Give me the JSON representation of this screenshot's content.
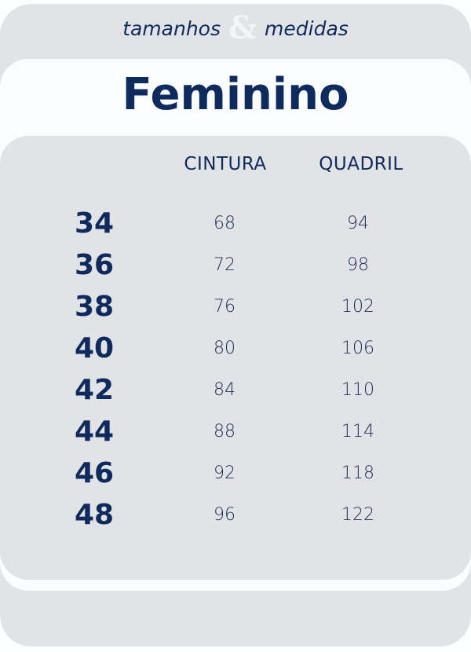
{
  "header": {
    "subtitle_left": "tamanhos",
    "ampersand": "&",
    "subtitle_right": "medidas",
    "title": "Feminino"
  },
  "table": {
    "columns": [
      "CINTURA",
      "QUADRIL"
    ],
    "rows": [
      {
        "size": "34",
        "cintura": "68",
        "quadril": "94"
      },
      {
        "size": "36",
        "cintura": "72",
        "quadril": "98"
      },
      {
        "size": "38",
        "cintura": "76",
        "quadril": "102"
      },
      {
        "size": "40",
        "cintura": "80",
        "quadril": "106"
      },
      {
        "size": "42",
        "cintura": "84",
        "quadril": "110"
      },
      {
        "size": "44",
        "cintura": "88",
        "quadril": "114"
      },
      {
        "size": "46",
        "cintura": "92",
        "quadril": "118"
      },
      {
        "size": "48",
        "cintura": "96",
        "quadril": "122"
      }
    ]
  },
  "colors": {
    "navy": "#0f2a5c",
    "gray": "#e1e3e6",
    "white": "#fbfcfe"
  }
}
